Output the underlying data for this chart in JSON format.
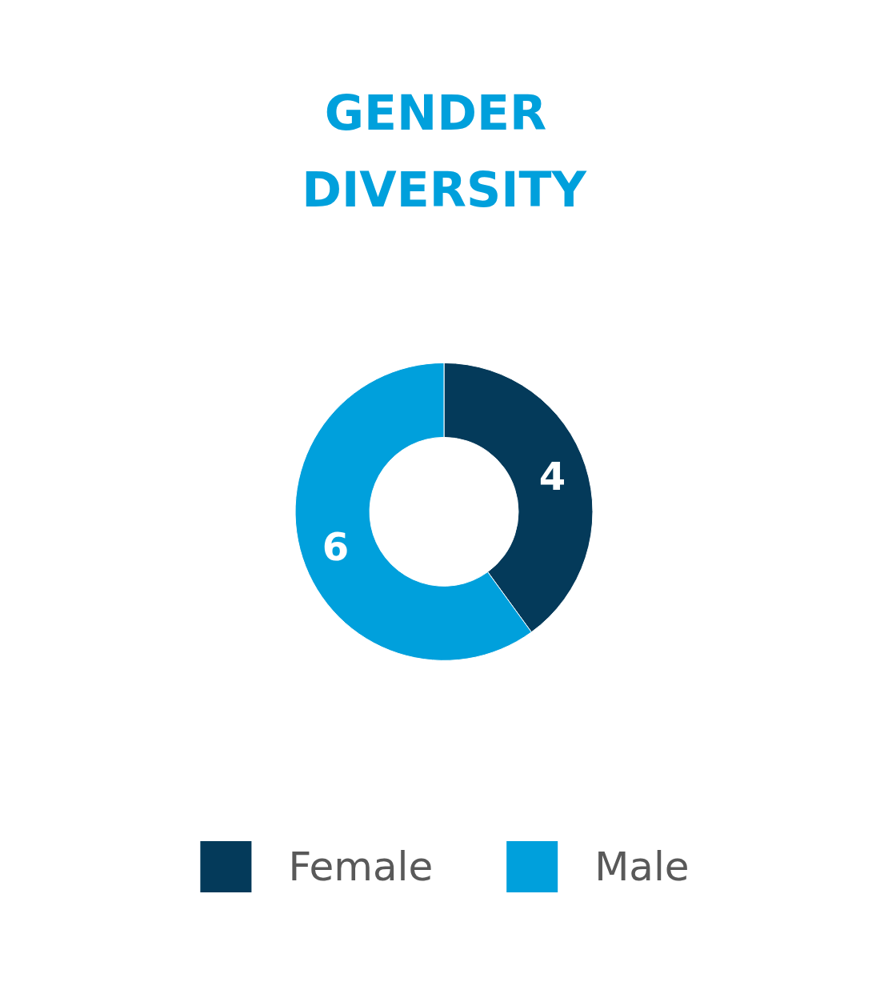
{
  "chart_data": {
    "type": "donut",
    "title": "GENDER DIVERSITY",
    "categories": [
      "Female",
      "Male"
    ],
    "values": [
      4,
      6
    ],
    "colors": [
      "#043a5a",
      "#00a0dc"
    ],
    "data_labels": true,
    "legend": "bottom"
  }
}
